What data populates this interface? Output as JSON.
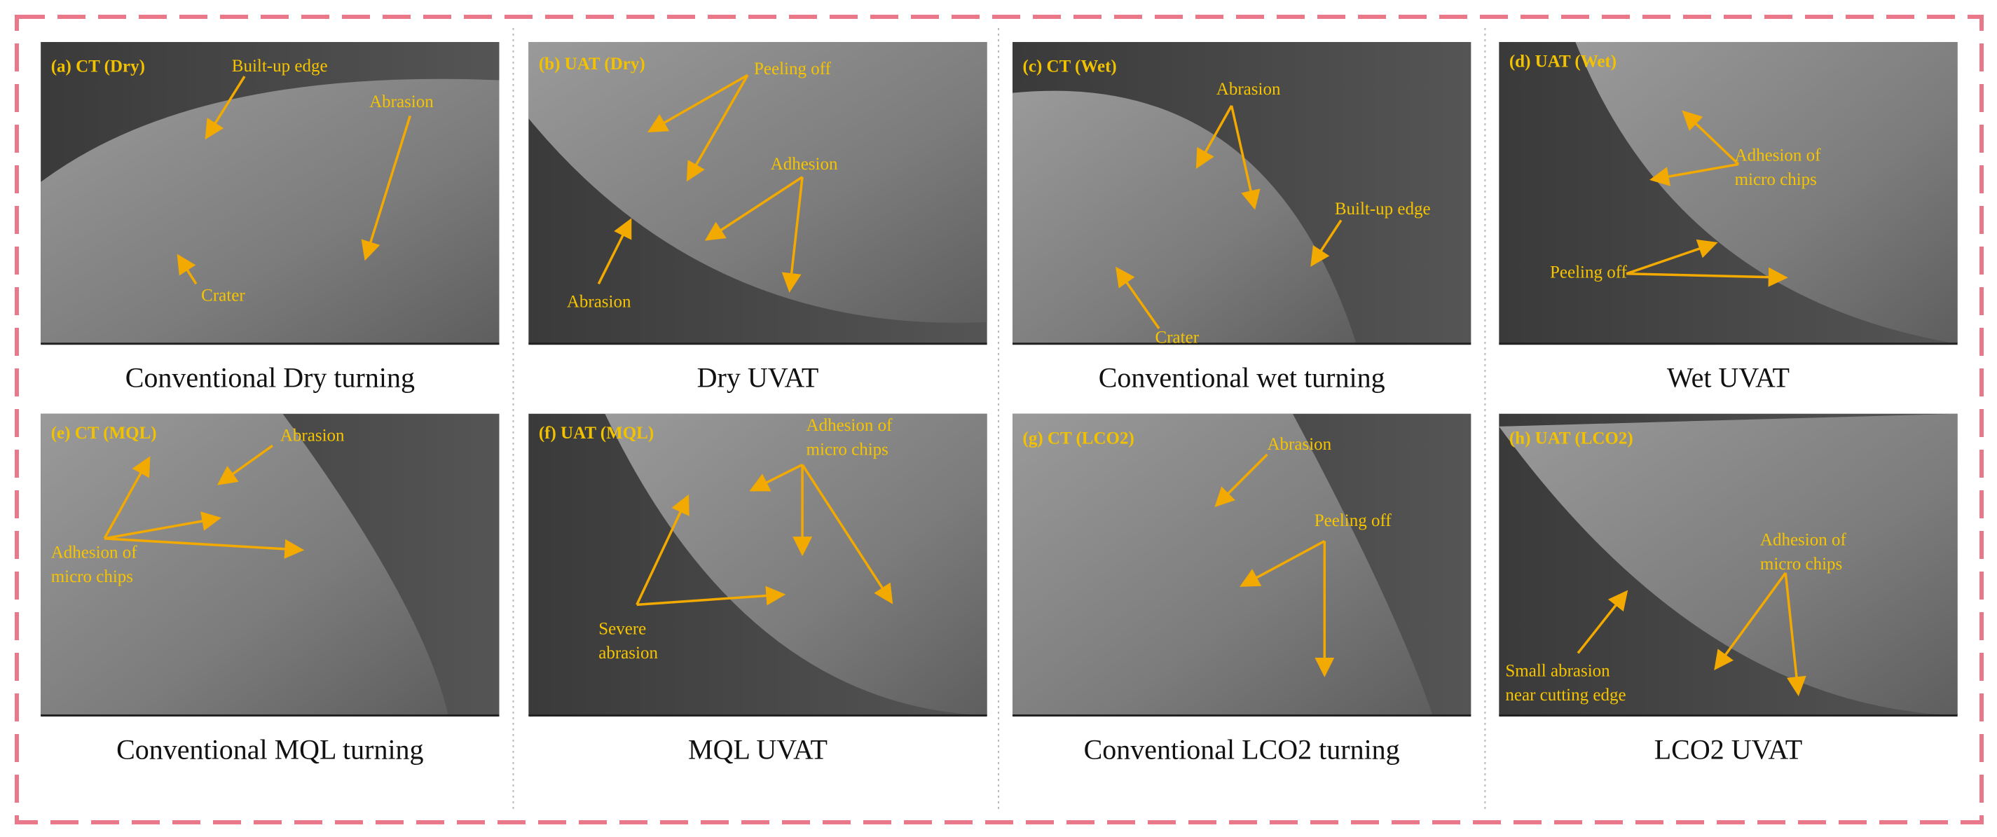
{
  "panels": [
    {
      "tag": "(a) CT (Dry)",
      "caption": "Conventional Dry turning",
      "annotations": [
        {
          "lines": [
            "Built-up edge"
          ]
        },
        {
          "lines": [
            "Abrasion"
          ]
        },
        {
          "lines": [
            "Crater"
          ]
        }
      ]
    },
    {
      "tag": "(b) UAT (Dry)",
      "caption": "Dry UVAT",
      "annotations": [
        {
          "lines": [
            "Peeling off"
          ]
        },
        {
          "lines": [
            "Adhesion"
          ]
        },
        {
          "lines": [
            "Abrasion"
          ]
        }
      ]
    },
    {
      "tag": "(c) CT (Wet)",
      "caption": "Conventional wet turning",
      "annotations": [
        {
          "lines": [
            "Abrasion"
          ]
        },
        {
          "lines": [
            "Built-up edge"
          ]
        },
        {
          "lines": [
            "Crater"
          ]
        }
      ]
    },
    {
      "tag": "(d) UAT (Wet)",
      "caption": "Wet UVAT",
      "annotations": [
        {
          "lines": [
            "Adhesion of",
            "micro chips"
          ]
        },
        {
          "lines": [
            "Peeling off"
          ]
        }
      ]
    },
    {
      "tag": "(e) CT (MQL)",
      "caption": "Conventional MQL turning",
      "annotations": [
        {
          "lines": [
            "Abrasion"
          ]
        },
        {
          "lines": [
            "Adhesion of",
            "micro chips"
          ]
        }
      ]
    },
    {
      "tag": "(f) UAT (MQL)",
      "caption": "MQL UVAT",
      "annotations": [
        {
          "lines": [
            "Adhesion of",
            "micro chips"
          ]
        },
        {
          "lines": [
            "Severe",
            "abrasion"
          ]
        }
      ]
    },
    {
      "tag": "(g) CT (LCO2)",
      "caption": "Conventional LCO2 turning",
      "annotations": [
        {
          "lines": [
            "Abrasion"
          ]
        },
        {
          "lines": [
            "Peeling off"
          ]
        }
      ]
    },
    {
      "tag": "(h) UAT (LCO2)",
      "caption": "LCO2 UVAT",
      "annotations": [
        {
          "lines": [
            "Adhesion of",
            "micro chips"
          ]
        },
        {
          "lines": [
            "Small abrasion",
            "near cutting edge"
          ]
        }
      ]
    }
  ]
}
